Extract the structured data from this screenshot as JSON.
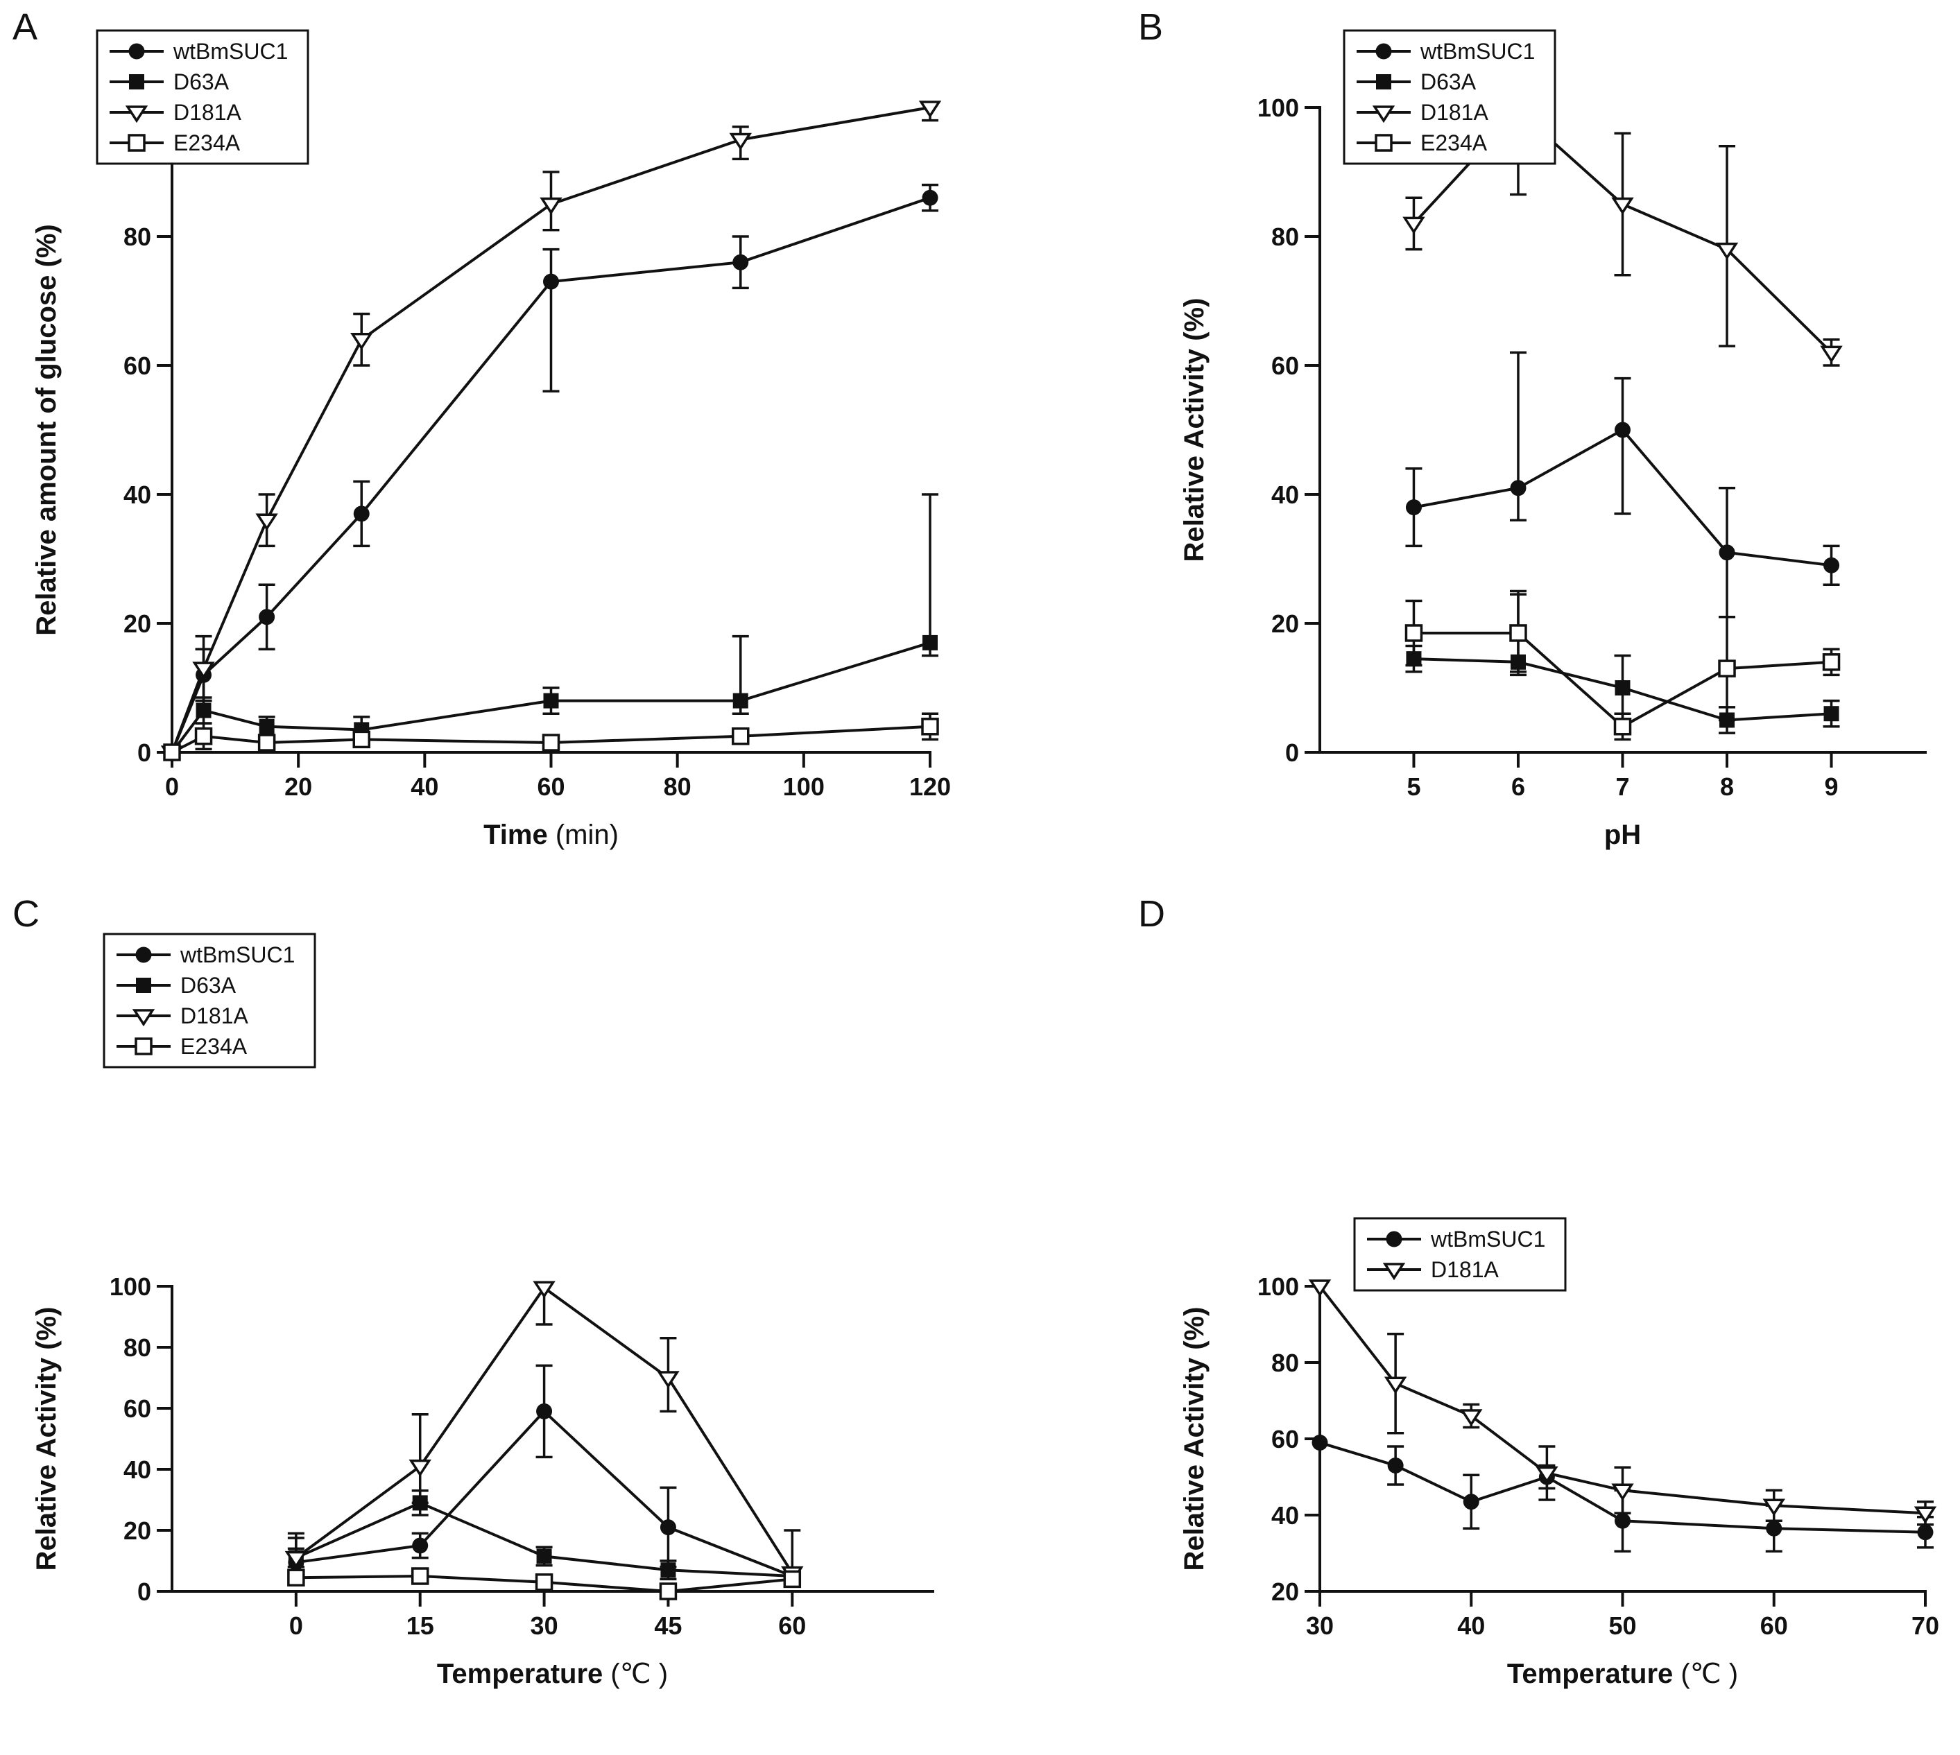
{
  "figure": {
    "panel_labels": [
      "A",
      "B",
      "C",
      "D"
    ]
  },
  "chart_data": [
    {
      "panel": "A",
      "type": "line",
      "title": "",
      "ylabel": "Relative amount of glucose (%)",
      "xlabel_parts": [
        {
          "text": "Time",
          "bold": true
        },
        {
          "text": " (min)",
          "bold": false
        }
      ],
      "x": [
        0,
        5,
        15,
        30,
        60,
        90,
        120
      ],
      "xlim": [
        0,
        120
      ],
      "xticks": [
        0,
        20,
        40,
        60,
        80,
        100,
        120
      ],
      "ylim": [
        0,
        100
      ],
      "yticks": [
        0,
        20,
        40,
        60,
        80,
        100
      ],
      "grid": false,
      "legend_position": "top-left",
      "series": [
        {
          "name": "wtBmSUC1",
          "marker": "filled-circle",
          "values": [
            0,
            12,
            21,
            37,
            73,
            76,
            86
          ],
          "errors": [
            [
              0,
              0
            ],
            [
              4,
              4
            ],
            [
              5,
              5
            ],
            [
              5,
              5
            ],
            [
              17,
              5
            ],
            [
              4,
              4
            ],
            [
              2,
              2
            ]
          ]
        },
        {
          "name": "D63A",
          "marker": "filled-square",
          "values": [
            0,
            6.5,
            4,
            3.5,
            8,
            8,
            17
          ],
          "errors": [
            [
              0,
              0
            ],
            [
              2,
              2
            ],
            [
              1.5,
              1.5
            ],
            [
              2,
              2
            ],
            [
              2,
              2
            ],
            [
              2,
              10
            ],
            [
              2,
              23
            ]
          ]
        },
        {
          "name": "D181A",
          "marker": "open-triangle-down",
          "values": [
            0,
            13,
            36,
            64,
            85,
            95,
            100
          ],
          "errors": [
            [
              0,
              0
            ],
            [
              5,
              5
            ],
            [
              4,
              4
            ],
            [
              4,
              4
            ],
            [
              4,
              5
            ],
            [
              3,
              2
            ],
            [
              2,
              0
            ]
          ]
        },
        {
          "name": "E234A",
          "marker": "open-square",
          "values": [
            0,
            2.5,
            1.5,
            2,
            1.5,
            2.5,
            4
          ],
          "errors": [
            [
              0,
              0
            ],
            [
              2,
              2
            ],
            [
              1,
              1
            ],
            [
              1,
              1
            ],
            [
              1,
              1
            ],
            [
              1,
              1
            ],
            [
              2,
              2
            ]
          ]
        }
      ]
    },
    {
      "panel": "B",
      "type": "line",
      "title": "",
      "ylabel": "Relative Activity (%)",
      "xlabel_parts": [
        {
          "text": "pH",
          "bold": true
        }
      ],
      "x": [
        5,
        6,
        7,
        8,
        9
      ],
      "xlim": [
        4.1,
        9.9
      ],
      "xticks": [
        5,
        6,
        7,
        8,
        9
      ],
      "ylim": [
        0,
        100
      ],
      "yticks": [
        0,
        20,
        40,
        60,
        80,
        100
      ],
      "grid": false,
      "legend_position": "top-left",
      "series": [
        {
          "name": "wtBmSUC1",
          "marker": "filled-circle",
          "values": [
            38,
            41,
            50,
            31,
            29
          ],
          "errors": [
            [
              6,
              6
            ],
            [
              5,
              21
            ],
            [
              13,
              8
            ],
            [
              10,
              10
            ],
            [
              3,
              3
            ]
          ]
        },
        {
          "name": "D63A",
          "marker": "filled-square",
          "values": [
            14.5,
            14,
            10,
            5,
            6
          ],
          "errors": [
            [
              2,
              2
            ],
            [
              2,
              11
            ],
            [
              5,
              5
            ],
            [
              2,
              2
            ],
            [
              2,
              2
            ]
          ]
        },
        {
          "name": "D181A",
          "marker": "open-triangle-down",
          "values": [
            82,
            99.5,
            85,
            78,
            62
          ],
          "errors": [
            [
              4,
              4
            ],
            [
              13,
              0
            ],
            [
              11,
              11
            ],
            [
              15,
              16
            ],
            [
              2,
              2
            ]
          ]
        },
        {
          "name": "E234A",
          "marker": "open-square",
          "values": [
            18.5,
            18.5,
            4,
            13,
            14
          ],
          "errors": [
            [
              5,
              5
            ],
            [
              6,
              6
            ],
            [
              2,
              2
            ],
            [
              8,
              8
            ],
            [
              2,
              2
            ]
          ]
        }
      ]
    },
    {
      "panel": "C",
      "type": "line",
      "title": "",
      "ylabel": "Relative Activity (%)",
      "xlabel_parts": [
        {
          "text": "Temperature",
          "bold": true
        },
        {
          "text": " (℃ )",
          "bold": false
        }
      ],
      "x": [
        0,
        15,
        30,
        45,
        60
      ],
      "xlim": [
        -15,
        77
      ],
      "xticks": [
        0,
        15,
        30,
        45,
        60
      ],
      "ylim": [
        0,
        100
      ],
      "yticks": [
        0,
        20,
        40,
        60,
        80,
        100
      ],
      "grid": false,
      "legend_position": "top-left-above",
      "series": [
        {
          "name": "wtBmSUC1",
          "marker": "filled-circle",
          "values": [
            9.5,
            15,
            59,
            21,
            5
          ],
          "errors": [
            [
              3,
              8
            ],
            [
              4,
              4
            ],
            [
              15,
              15
            ],
            [
              13,
              13
            ],
            [
              2,
              2
            ]
          ]
        },
        {
          "name": "D63A",
          "marker": "filled-square",
          "values": [
            11,
            29,
            11.5,
            7,
            5
          ],
          "errors": [
            [
              3,
              3
            ],
            [
              4,
              4
            ],
            [
              3,
              3
            ],
            [
              3,
              3
            ],
            [
              2,
              2
            ]
          ]
        },
        {
          "name": "D181A",
          "marker": "open-triangle-down",
          "values": [
            11,
            41,
            99.5,
            70,
            6
          ],
          "errors": [
            [
              3,
              8
            ],
            [
              12,
              17
            ],
            [
              12,
              0
            ],
            [
              11,
              13
            ],
            [
              3,
              14
            ]
          ]
        },
        {
          "name": "E234A",
          "marker": "open-square",
          "values": [
            4.5,
            5,
            3,
            0,
            4
          ],
          "errors": [
            [
              2,
              2
            ],
            [
              2,
              2
            ],
            [
              1,
              1
            ],
            [
              2,
              2
            ],
            [
              2,
              2
            ]
          ]
        }
      ]
    },
    {
      "panel": "D",
      "type": "line",
      "title": "",
      "ylabel": "Relative Activity (%)",
      "xlabel_parts": [
        {
          "text": "Temperature",
          "bold": true
        },
        {
          "text": " (℃ )",
          "bold": false
        }
      ],
      "x": [
        30,
        35,
        40,
        45,
        50,
        60,
        70
      ],
      "xlim": [
        30,
        70
      ],
      "xticks": [
        30,
        40,
        50,
        60,
        70
      ],
      "ylim": [
        20,
        100
      ],
      "yticks": [
        20,
        40,
        60,
        80,
        100
      ],
      "grid": false,
      "legend_position": "top-left-inside",
      "series": [
        {
          "name": "wtBmSUC1",
          "marker": "filled-circle",
          "values": [
            59,
            53,
            43.5,
            50,
            38.5,
            36.5,
            35.5
          ],
          "errors": [
            [
              0,
              0
            ],
            [
              5,
              5
            ],
            [
              7,
              7
            ],
            [
              3,
              3
            ],
            [
              8,
              8
            ],
            [
              6,
              6
            ],
            [
              4,
              4
            ]
          ]
        },
        {
          "name": "D181A",
          "marker": "open-triangle-down",
          "values": [
            100,
            74.5,
            66,
            51,
            46.5,
            42.5,
            40.5
          ],
          "errors": [
            [
              0,
              0
            ],
            [
              13,
              13
            ],
            [
              3,
              3
            ],
            [
              7,
              7
            ],
            [
              6,
              6
            ],
            [
              4,
              4
            ],
            [
              3,
              3
            ]
          ]
        }
      ]
    }
  ]
}
